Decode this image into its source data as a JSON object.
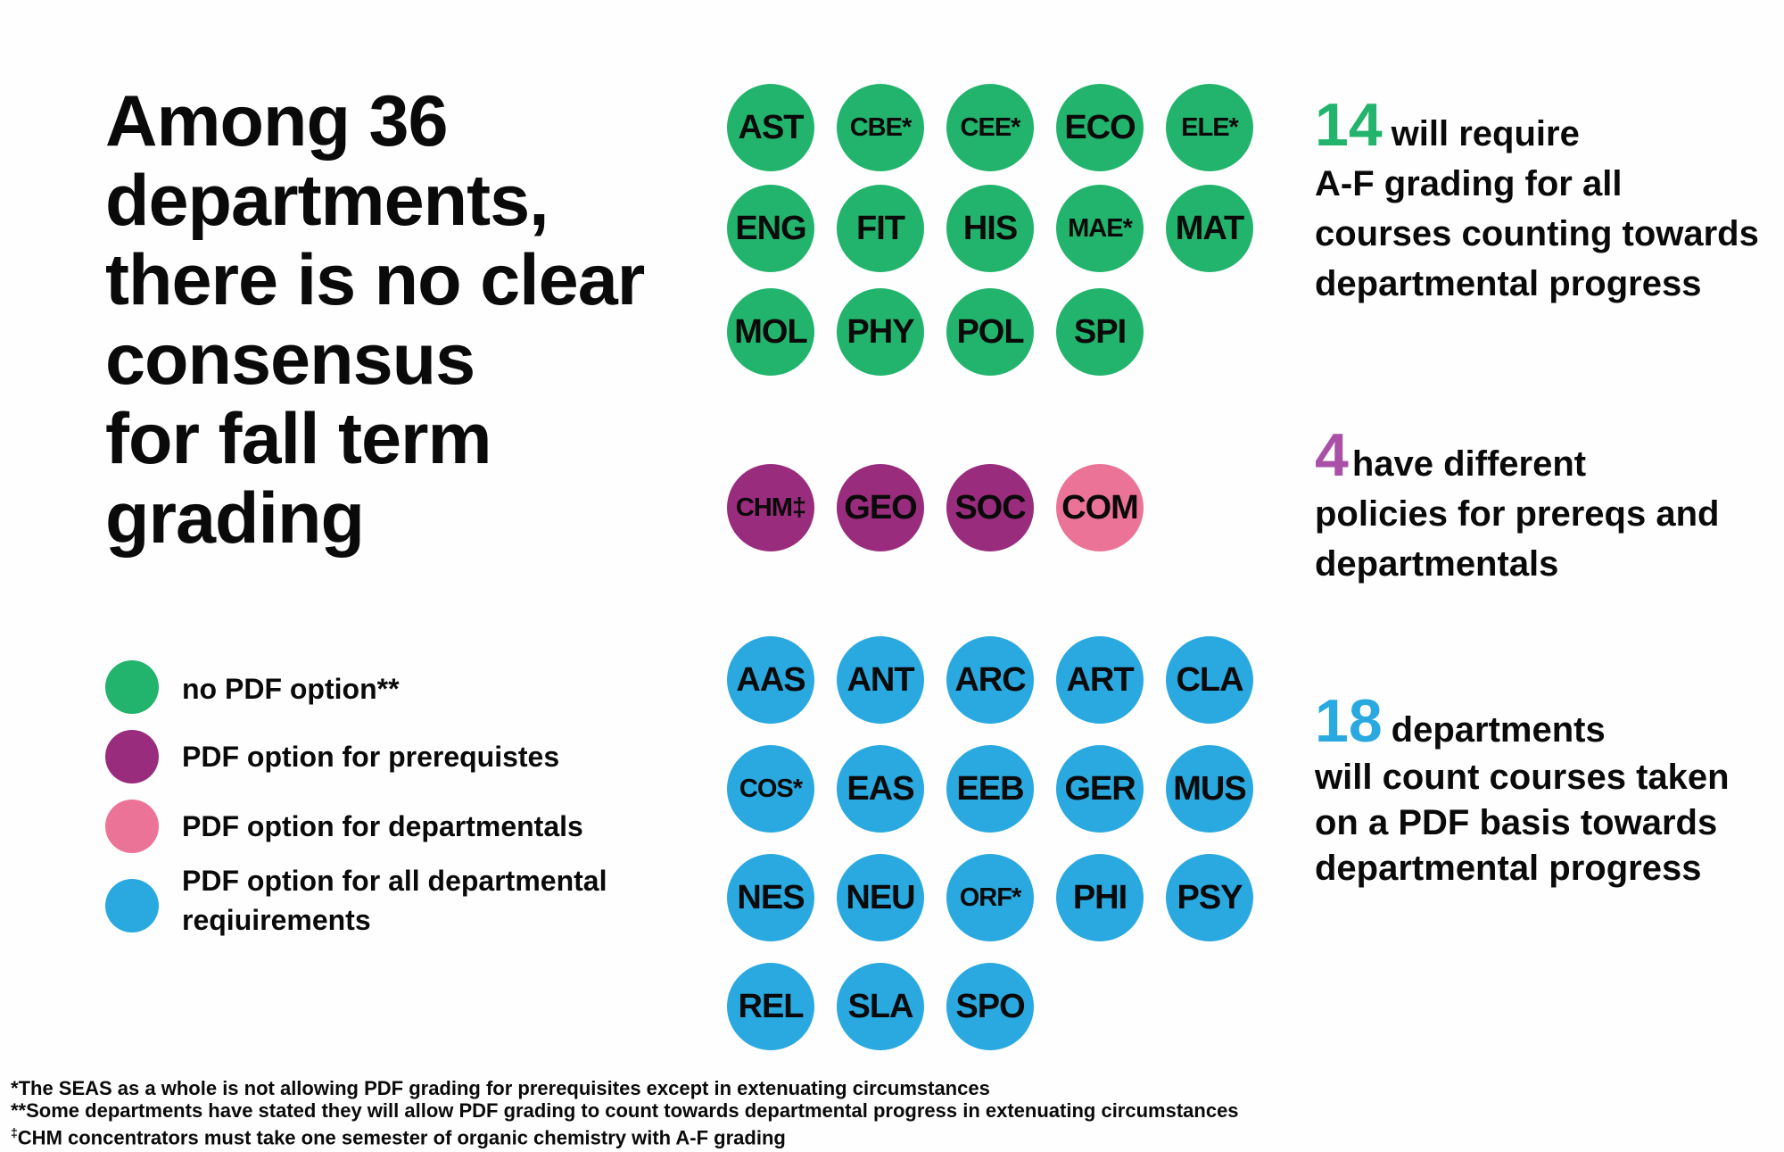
{
  "headline": [
    "Among 36",
    "departments,",
    "there is no clear",
    "consensus",
    "for fall term",
    "grading"
  ],
  "colors": {
    "green": "#22b46c",
    "purple": "#992c7c",
    "pink": "#ec7398",
    "blue": "#29a9e0",
    "num_green": "#22b46c",
    "num_purple": "#a851a6",
    "num_blue": "#29a9e0"
  },
  "legend": [
    {
      "color": "#22b46c",
      "label": "no PDF option**"
    },
    {
      "color": "#992c7c",
      "label": "PDF option for prerequistes"
    },
    {
      "color": "#ec7398",
      "label": "PDF option for departmentals"
    },
    {
      "color": "#29a9e0",
      "label": "PDF option for all departmental\nreqiuirements"
    }
  ],
  "stats": [
    {
      "number": "14",
      "text": "will require",
      "rest": "A-F grading for all courses counting towards departmental progress",
      "color": "#22b46c"
    },
    {
      "number": "4",
      "text": "have different",
      "rest": "policies for prereqs and departmentals",
      "color": "#a851a6"
    },
    {
      "number": "18",
      "text": "departments",
      "rest": "will count courses taken on a PDF basis towards departmental progress",
      "color": "#29a9e0"
    }
  ],
  "chart_data": {
    "type": "table",
    "groups": [
      {
        "category": "no PDF option**",
        "color": "#22b46c",
        "count": 14,
        "departments": [
          "AST",
          "CBE*",
          "CEE*",
          "ECO",
          "ELE*",
          "ENG",
          "FIT",
          "HIS",
          "MAE*",
          "MAT",
          "MOL",
          "PHY",
          "POL",
          "SPI"
        ]
      },
      {
        "category": "PDF option for prerequistes",
        "color": "#992c7c",
        "count": 3,
        "departments": [
          "CHM‡",
          "GEO",
          "SOC"
        ]
      },
      {
        "category": "PDF option for departmentals",
        "color": "#ec7398",
        "count": 1,
        "departments": [
          "COM"
        ]
      },
      {
        "category": "PDF option for all departmental reqiuirements",
        "color": "#29a9e0",
        "count": 18,
        "departments": [
          "AAS",
          "ANT",
          "ARC",
          "ART",
          "CLA",
          "COS*",
          "EAS",
          "EEB",
          "GER",
          "MUS",
          "NES",
          "NEU",
          "ORF*",
          "PHI",
          "PSY",
          "REL",
          "SLA",
          "SPO"
        ]
      }
    ]
  },
  "footnotes": [
    {
      "mark": "*",
      "text": "The SEAS as a whole is not allowing PDF grading for prerequisites except in extenuating circumstances"
    },
    {
      "mark": "**",
      "text": "Some departments have stated they will allow PDF grading to count towards departmental progress in extenuating circumstances"
    },
    {
      "mark": "‡",
      "text": "CHM concentrators must take one semester of organic chemistry with A-F grading"
    }
  ]
}
